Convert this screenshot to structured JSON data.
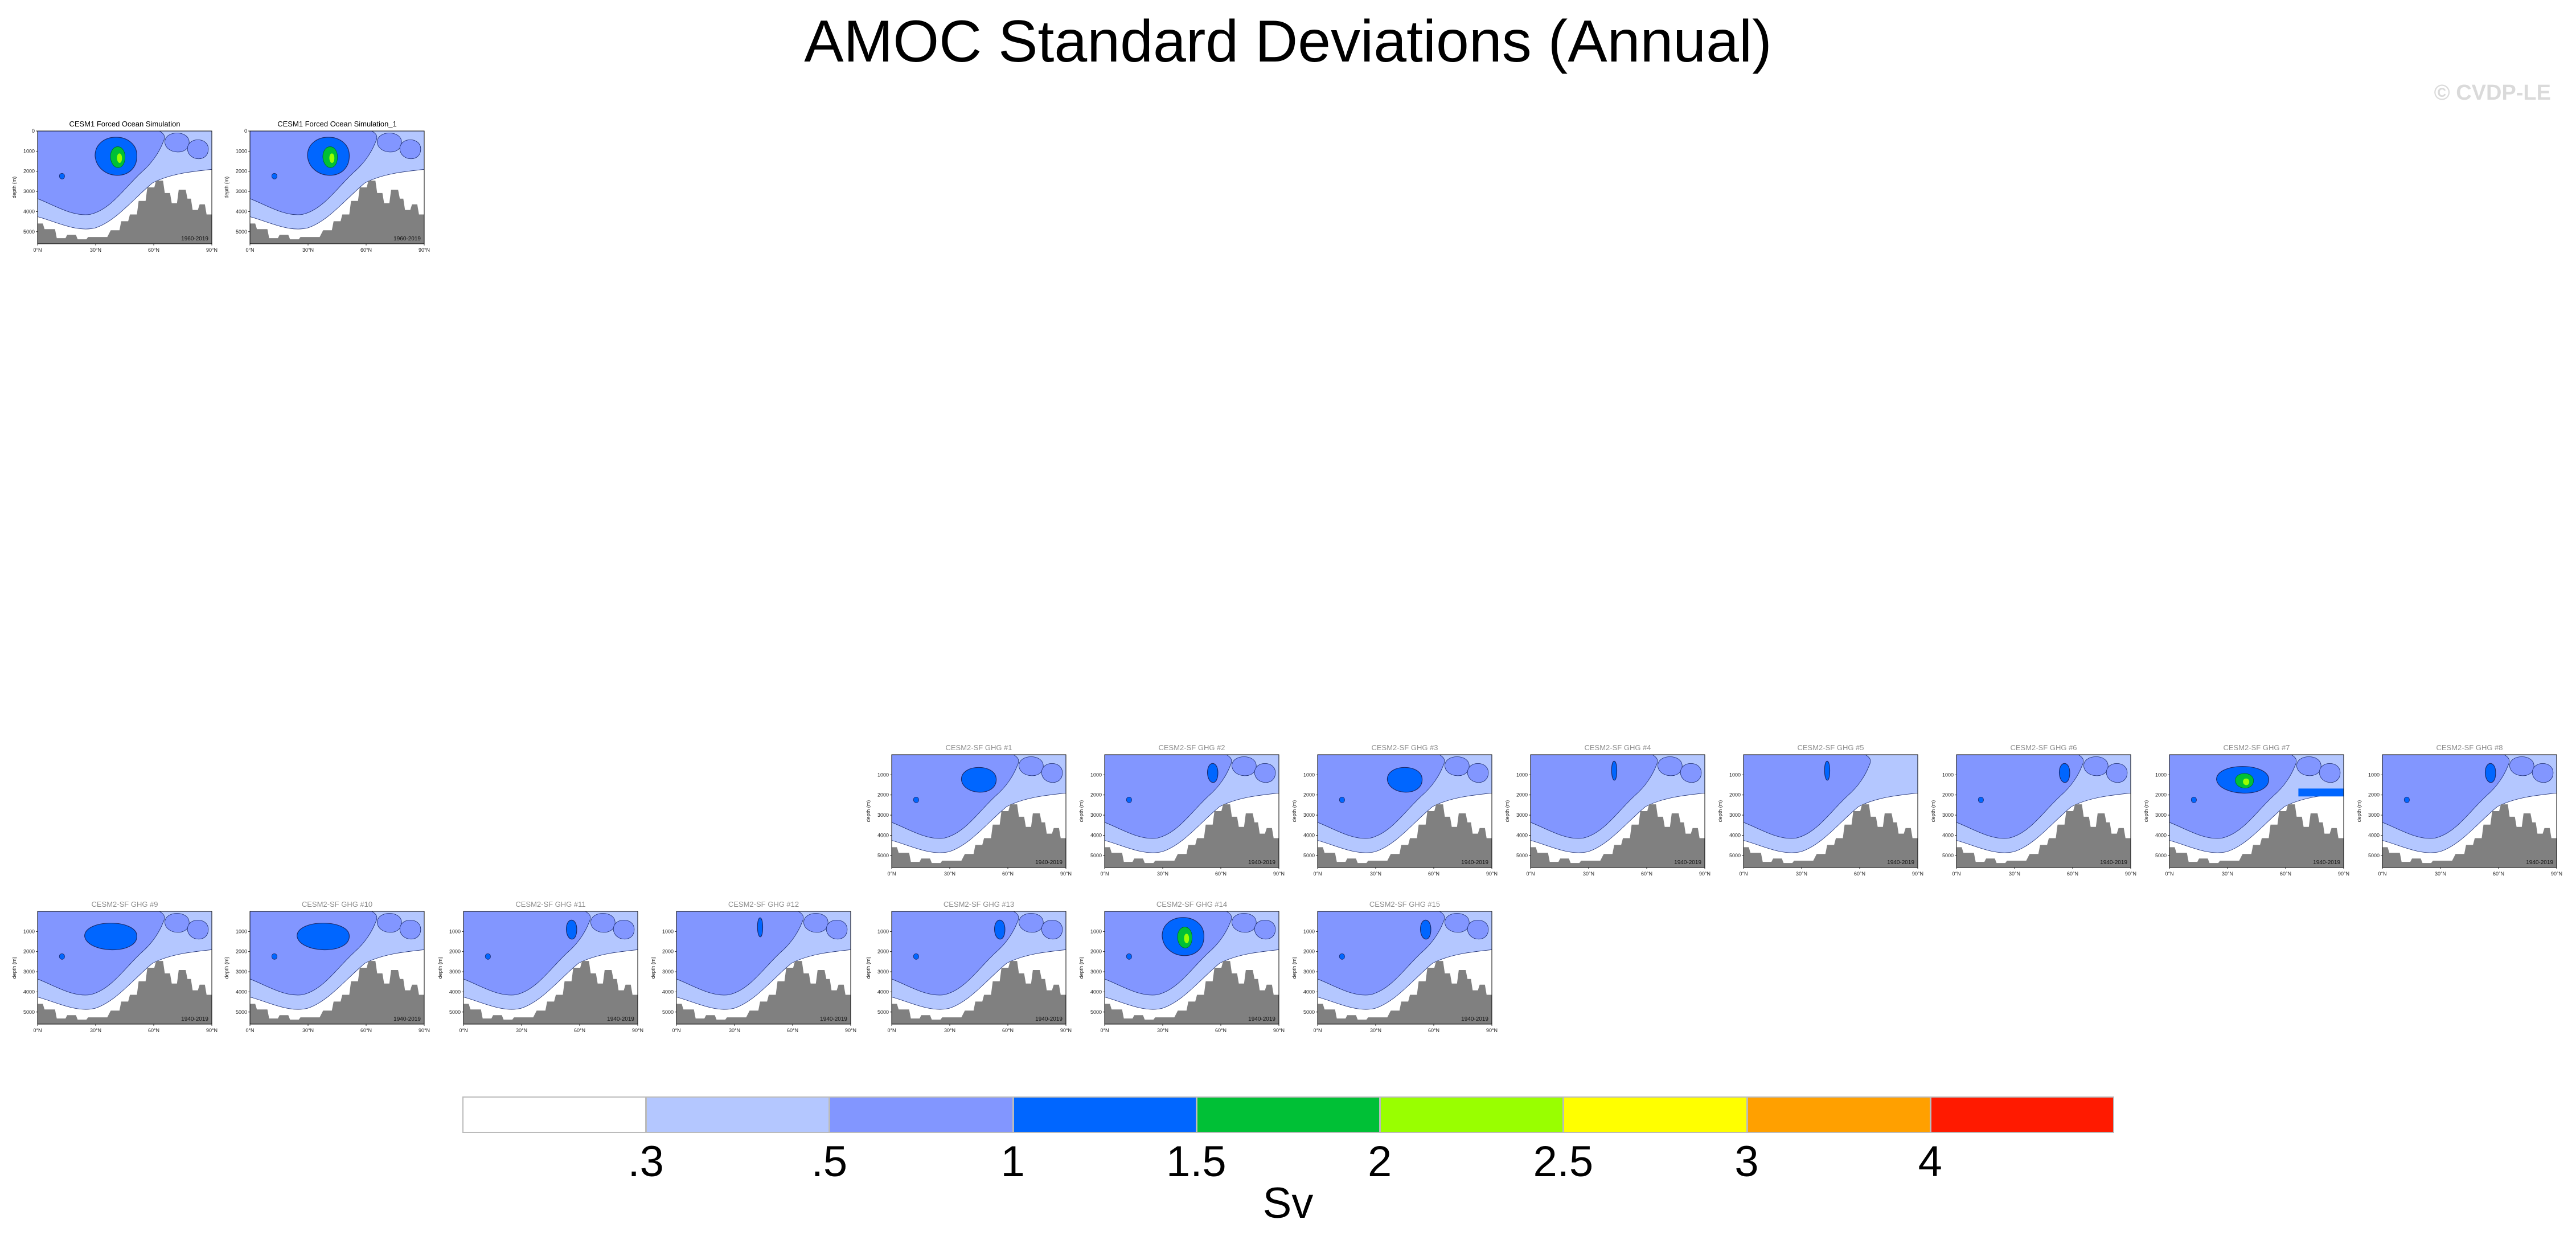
{
  "title": "AMOC Standard Deviations (Annual)",
  "watermark": "© CVDP-LE",
  "axis": {
    "xtick_labels": [
      "0°N",
      "30°N",
      "60°N",
      "90°N"
    ],
    "ytick_labels_top": [
      "0",
      "1000",
      "2000",
      "3000",
      "4000",
      "5000"
    ],
    "ytick_labels": [
      "1000",
      "2000",
      "3000",
      "4000",
      "5000"
    ],
    "ylabel": "depth (m)"
  },
  "colors": {
    "levels": [
      "#ffffff",
      "#b4c7ff",
      "#8296ff",
      "#0066ff",
      "#00c036",
      "#99ff00",
      "#ffff00",
      "#ffa000",
      "#ff1a00"
    ],
    "outline": "#1a2a6e",
    "topography": "#808080"
  },
  "chart_data": {
    "type": "contour",
    "variable": "AMOC standard deviation",
    "units": "Sv",
    "colorbar": {
      "boundary_labels": [
        ".3",
        ".5",
        "1",
        "1.5",
        "2",
        "2.5",
        "3",
        "4"
      ],
      "boundaries": [
        0.3,
        0.5,
        1,
        1.5,
        2,
        2.5,
        3,
        4
      ],
      "units_label": "Sv"
    },
    "panels": [
      {
        "title": "CESM1 Forced Ocean Simulation",
        "years": "1960-2019",
        "faded": false,
        "max_level": 5,
        "core": "strong",
        "upper": true
      },
      {
        "title": "CESM1 Forced Ocean Simulation_1",
        "years": "1960-2019",
        "faded": false,
        "max_level": 5,
        "core": "strong",
        "upper": true
      },
      {
        "title": "CESM2-SF GHG #1",
        "years": "1940-2019",
        "faded": true,
        "max_level": 3,
        "core": "medium",
        "upper": true
      },
      {
        "title": "CESM2-SF GHG #2",
        "years": "1940-2019",
        "faded": true,
        "max_level": 3,
        "core": "small",
        "upper": true
      },
      {
        "title": "CESM2-SF GHG #3",
        "years": "1940-2019",
        "faded": true,
        "max_level": 3,
        "core": "medium",
        "upper": true
      },
      {
        "title": "CESM2-SF GHG #4",
        "years": "1940-2019",
        "faded": true,
        "max_level": 3,
        "core": "tiny",
        "upper": true
      },
      {
        "title": "CESM2-SF GHG #5",
        "years": "1940-2019",
        "faded": true,
        "max_level": 3,
        "core": "tiny",
        "upper": false
      },
      {
        "title": "CESM2-SF GHG #6",
        "years": "1940-2019",
        "faded": true,
        "max_level": 3,
        "core": "small",
        "upper": true
      },
      {
        "title": "CESM2-SF GHG #7",
        "years": "1940-2019",
        "faded": true,
        "max_level": 5,
        "core": "large",
        "upper": true,
        "band": true
      },
      {
        "title": "CESM2-SF GHG #8",
        "years": "1940-2019",
        "faded": true,
        "max_level": 3,
        "core": "small",
        "upper": true
      },
      {
        "title": "CESM2-SF GHG #9",
        "years": "1940-2019",
        "faded": true,
        "max_level": 3,
        "core": "large",
        "upper": true
      },
      {
        "title": "CESM2-SF GHG #10",
        "years": "1940-2019",
        "faded": true,
        "max_level": 3,
        "core": "large",
        "upper": true
      },
      {
        "title": "CESM2-SF GHG #11",
        "years": "1940-2019",
        "faded": true,
        "max_level": 3,
        "core": "small",
        "upper": true
      },
      {
        "title": "CESM2-SF GHG #12",
        "years": "1940-2019",
        "faded": true,
        "max_level": 3,
        "core": "tiny",
        "upper": true
      },
      {
        "title": "CESM2-SF GHG #13",
        "years": "1940-2019",
        "faded": true,
        "max_level": 3,
        "core": "small",
        "upper": true
      },
      {
        "title": "CESM2-SF GHG #14",
        "years": "1940-2019",
        "faded": true,
        "max_level": 5,
        "core": "strong",
        "upper": true
      },
      {
        "title": "CESM2-SF GHG #15",
        "years": "1940-2019",
        "faded": true,
        "max_level": 3,
        "core": "small",
        "upper": true
      }
    ]
  }
}
